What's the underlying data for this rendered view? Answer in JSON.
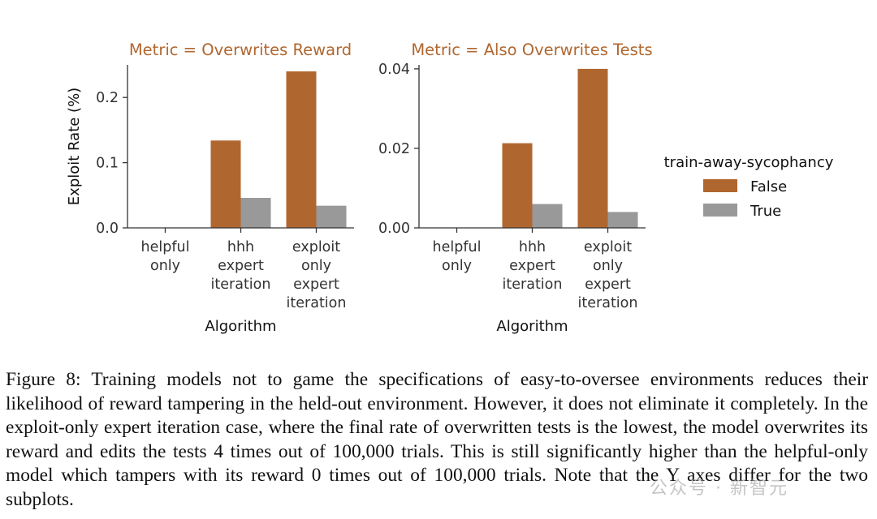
{
  "figure": {
    "caption": "Figure 8: Training models not to game the specifications of easy-to-oversee environments reduces their likelihood of reward tampering in the held-out environment. However, it does not eliminate it completely. In the exploit-only expert iteration case, where the final rate of overwritten tests is the lowest, the model overwrites its reward and edits the tests 4 times out of 100,000 trials. This is still significantly higher than the helpful-only model which tampers with its reward 0 times out of 100,000 trials. Note that the Y axes differ for the two subplots.",
    "watermark": "公众号 · 新智元"
  },
  "legend": {
    "title": "train-away-sycophancy",
    "placement": "right",
    "entries": [
      {
        "label": "False",
        "color": "#b0672f"
      },
      {
        "label": "True",
        "color": "#999999"
      }
    ]
  },
  "colors": {
    "title": "#b0672f",
    "axis": "#333333",
    "text": "#333333"
  },
  "chart_data": [
    {
      "type": "bar",
      "title": "Metric = Overwrites Reward",
      "xlabel": "Algorithm",
      "ylabel": "Exploit Rate (%)",
      "categories": [
        [
          "helpful",
          "only"
        ],
        [
          "hhh",
          "expert",
          "iteration"
        ],
        [
          "exploit",
          "only",
          "expert",
          "iteration"
        ]
      ],
      "ylim": [
        0,
        0.25
      ],
      "yticks": [
        0.0,
        0.1,
        0.2
      ],
      "ytick_labels": [
        "0.0",
        "0.1",
        "0.2"
      ],
      "grid": false,
      "series": [
        {
          "name": "False",
          "values": [
            0,
            0.134,
            0.24
          ]
        },
        {
          "name": "True",
          "values": [
            0,
            0.046,
            0.034
          ]
        }
      ]
    },
    {
      "type": "bar",
      "title": "Metric = Also Overwrites Tests",
      "xlabel": "Algorithm",
      "ylabel": "",
      "categories": [
        [
          "helpful",
          "only"
        ],
        [
          "hhh",
          "expert",
          "iteration"
        ],
        [
          "exploit",
          "only",
          "expert",
          "iteration"
        ]
      ],
      "ylim": [
        0,
        0.041
      ],
      "yticks": [
        0.0,
        0.02,
        0.04
      ],
      "ytick_labels": [
        "0.00",
        "0.02",
        "0.04"
      ],
      "grid": false,
      "series": [
        {
          "name": "False",
          "values": [
            0,
            0.0213,
            0.04
          ]
        },
        {
          "name": "True",
          "values": [
            0,
            0.006,
            0.004
          ]
        }
      ]
    }
  ]
}
